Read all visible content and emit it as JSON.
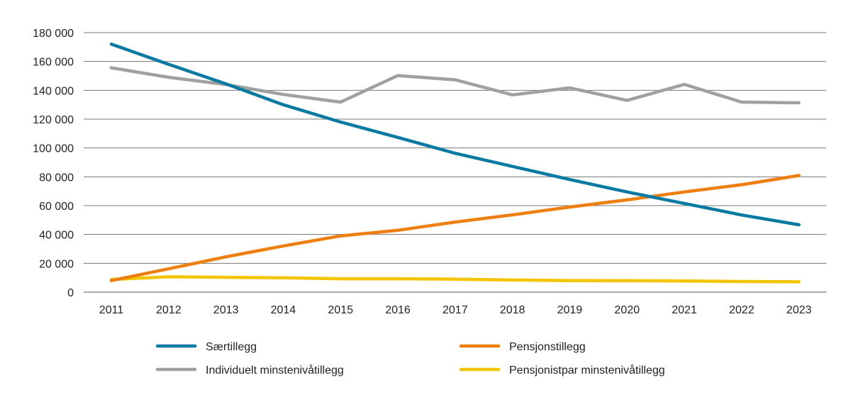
{
  "chart_data": {
    "type": "line",
    "title": "",
    "xlabel": "",
    "ylabel": "",
    "x": [
      2011,
      2012,
      2013,
      2014,
      2015,
      2016,
      2017,
      2018,
      2019,
      2020,
      2021,
      2022,
      2023
    ],
    "ylim": [
      0,
      180000
    ],
    "yticks": [
      0,
      20000,
      40000,
      60000,
      80000,
      100000,
      120000,
      140000,
      160000,
      180000
    ],
    "ytick_labels": [
      "0",
      "20 000",
      "40 000",
      "60 000",
      "80 000",
      "100 000",
      "120 000",
      "140 000",
      "160 000",
      "180 000"
    ],
    "grid": true,
    "legend_placement": "bottom",
    "series": [
      {
        "name": "Særtillegg",
        "color": "#0b7aa3",
        "values": [
          172000,
          158000,
          144500,
          130000,
          118000,
          107300,
          96300,
          87200,
          78100,
          69500,
          61500,
          53500,
          46700
        ]
      },
      {
        "name": "Pensjonstillegg",
        "color": "#ee7f0f",
        "values": [
          8000,
          16200,
          24500,
          32000,
          39000,
          42900,
          48600,
          53600,
          59000,
          64000,
          69500,
          74500,
          80900
        ]
      },
      {
        "name": "Individuelt minstenivåtillegg",
        "color": "#a0a0a0",
        "values": [
          155600,
          149000,
          144000,
          137100,
          131800,
          150200,
          147300,
          136800,
          141700,
          133000,
          144100,
          131800,
          131300
        ]
      },
      {
        "name": "Pensjonistpar minstenivåtillegg",
        "color": "#f5c400",
        "values": [
          8800,
          10600,
          10300,
          10000,
          9300,
          9300,
          9000,
          8400,
          8000,
          7900,
          7700,
          7400,
          7200
        ]
      }
    ]
  }
}
